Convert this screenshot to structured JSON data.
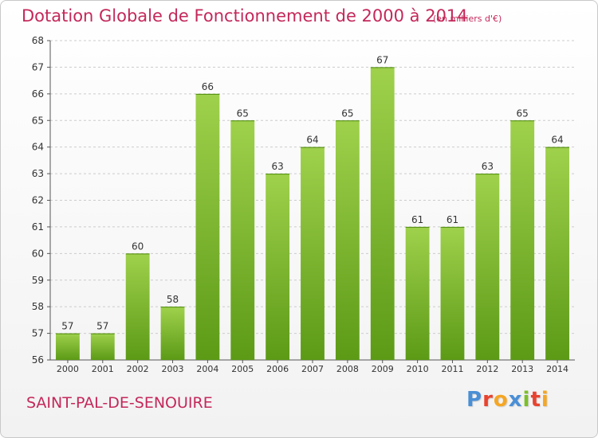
{
  "chart_data": {
    "type": "bar",
    "title": "Dotation Globale de Fonctionnement de 2000 à 2014",
    "subtitle": "(en milliers d'€)",
    "categories": [
      "2000",
      "2001",
      "2002",
      "2003",
      "2004",
      "2005",
      "2006",
      "2007",
      "2008",
      "2009",
      "2010",
      "2011",
      "2012",
      "2013",
      "2014"
    ],
    "values": [
      57,
      57,
      60,
      58,
      66,
      65,
      63,
      64,
      65,
      67,
      61,
      61,
      63,
      65,
      64
    ],
    "ylim": [
      56,
      68
    ],
    "yticks": [
      56,
      57,
      58,
      59,
      60,
      61,
      62,
      63,
      64,
      65,
      66,
      67,
      68
    ],
    "grid": true,
    "bar_color": "#7bbf2a"
  },
  "location": "SAINT-PAL-DE-SENOUIRE",
  "logo": {
    "letters": [
      "P",
      "r",
      "o",
      "x",
      "i",
      "t",
      "i"
    ],
    "colors": [
      "#4a8fd6",
      "#e8432f",
      "#f5a623",
      "#4a8fd6",
      "#7bbf2a",
      "#e8432f",
      "#f5a623"
    ]
  },
  "colors": {
    "title": "#c4285a",
    "grid": "#cccccc",
    "axis": "#555555"
  }
}
